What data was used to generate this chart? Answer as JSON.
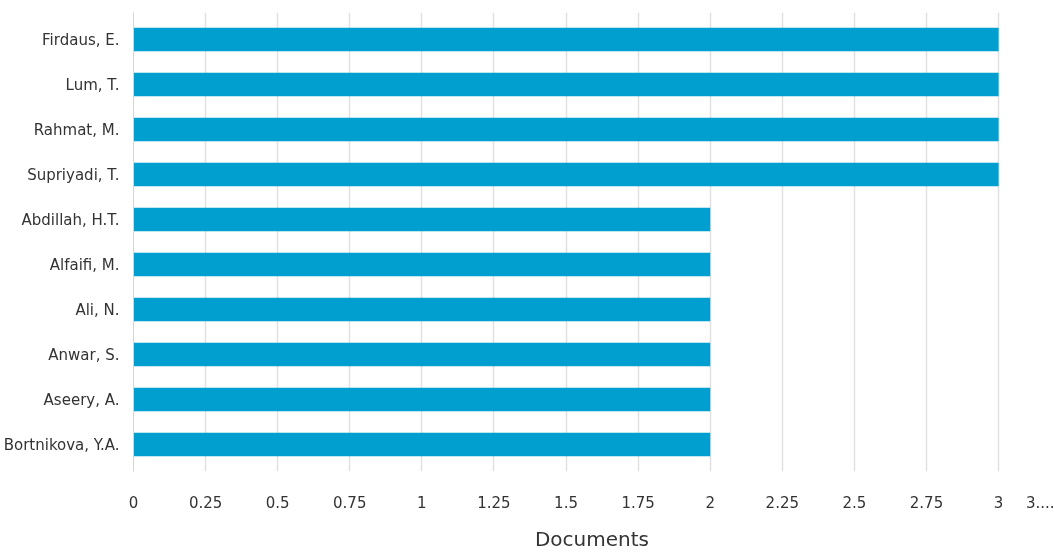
{
  "chart_data": {
    "type": "bar",
    "orientation": "horizontal",
    "xlabel": "Documents",
    "categories": [
      "Firdaus, E.",
      "Lum, T.",
      "Rahmat, M.",
      "Supriyadi, T.",
      "Abdillah, H.T.",
      "Alfaifi, M.",
      "Ali, N.",
      "Anwar, S.",
      "Aseery, A.",
      "Bortnikova, Y.A."
    ],
    "values": [
      3,
      3,
      3,
      3,
      2,
      2,
      2,
      2,
      2,
      2
    ],
    "color": "#009fcf",
    "xlim": [
      0,
      3.18
    ],
    "xticks": [
      0,
      0.25,
      0.5,
      0.75,
      1,
      1.25,
      1.5,
      1.75,
      2,
      2.25,
      2.5,
      2.75,
      3,
      {
        "value": 3.18,
        "label": "3...."
      }
    ],
    "grid": "x"
  }
}
